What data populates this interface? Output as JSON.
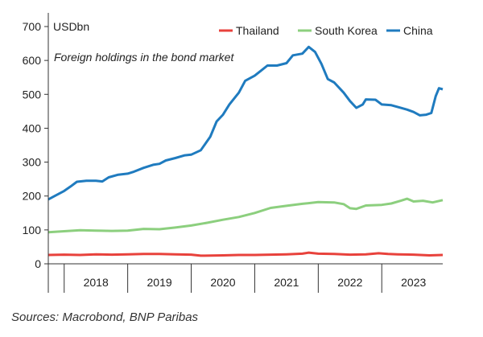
{
  "chart_data": {
    "type": "line",
    "unit_label": "USDbn",
    "subtitle": "Foreign holdings in the bond market",
    "x_range": [
      2017.75,
      2023.96
    ],
    "ylim": [
      0,
      700
    ],
    "yticks": [
      0,
      100,
      200,
      300,
      400,
      500,
      600,
      700
    ],
    "year_labels": [
      "2018",
      "2019",
      "2020",
      "2021",
      "2022",
      "2023"
    ],
    "legend_position": "top-right",
    "series": [
      {
        "name": "Thailand",
        "color": "#e8423c",
        "points": [
          [
            2017.75,
            26
          ],
          [
            2018.0,
            27
          ],
          [
            2018.25,
            26
          ],
          [
            2018.5,
            28
          ],
          [
            2018.75,
            27
          ],
          [
            2019.0,
            28
          ],
          [
            2019.25,
            29
          ],
          [
            2019.5,
            29
          ],
          [
            2019.75,
            28
          ],
          [
            2020.0,
            27
          ],
          [
            2020.15,
            24
          ],
          [
            2020.5,
            25
          ],
          [
            2020.75,
            26
          ],
          [
            2021.0,
            26
          ],
          [
            2021.25,
            27
          ],
          [
            2021.5,
            28
          ],
          [
            2021.75,
            30
          ],
          [
            2021.85,
            33
          ],
          [
            2022.0,
            30
          ],
          [
            2022.25,
            29
          ],
          [
            2022.5,
            27
          ],
          [
            2022.75,
            28
          ],
          [
            2022.95,
            31
          ],
          [
            2023.1,
            29
          ],
          [
            2023.25,
            28
          ],
          [
            2023.5,
            27
          ],
          [
            2023.75,
            25
          ],
          [
            2023.96,
            26
          ]
        ]
      },
      {
        "name": "South Korea",
        "color": "#8ccf7e",
        "points": [
          [
            2017.75,
            93
          ],
          [
            2018.0,
            96
          ],
          [
            2018.25,
            99
          ],
          [
            2018.5,
            98
          ],
          [
            2018.75,
            97
          ],
          [
            2019.0,
            98
          ],
          [
            2019.25,
            103
          ],
          [
            2019.5,
            102
          ],
          [
            2019.75,
            107
          ],
          [
            2020.0,
            113
          ],
          [
            2020.25,
            121
          ],
          [
            2020.5,
            130
          ],
          [
            2020.75,
            138
          ],
          [
            2021.0,
            150
          ],
          [
            2021.25,
            165
          ],
          [
            2021.5,
            171
          ],
          [
            2021.75,
            177
          ],
          [
            2022.0,
            182
          ],
          [
            2022.25,
            181
          ],
          [
            2022.4,
            176
          ],
          [
            2022.5,
            164
          ],
          [
            2022.6,
            162
          ],
          [
            2022.75,
            172
          ],
          [
            2023.0,
            174
          ],
          [
            2023.15,
            178
          ],
          [
            2023.3,
            186
          ],
          [
            2023.4,
            192
          ],
          [
            2023.5,
            184
          ],
          [
            2023.65,
            186
          ],
          [
            2023.8,
            181
          ],
          [
            2023.96,
            188
          ]
        ]
      },
      {
        "name": "China",
        "color": "#1f7bbf",
        "points": [
          [
            2017.75,
            190
          ],
          [
            2017.85,
            200
          ],
          [
            2018.0,
            215
          ],
          [
            2018.1,
            228
          ],
          [
            2018.2,
            242
          ],
          [
            2018.35,
            245
          ],
          [
            2018.5,
            245
          ],
          [
            2018.6,
            243
          ],
          [
            2018.7,
            255
          ],
          [
            2018.85,
            263
          ],
          [
            2019.0,
            266
          ],
          [
            2019.1,
            272
          ],
          [
            2019.25,
            283
          ],
          [
            2019.4,
            292
          ],
          [
            2019.5,
            295
          ],
          [
            2019.6,
            305
          ],
          [
            2019.75,
            312
          ],
          [
            2019.9,
            320
          ],
          [
            2020.0,
            322
          ],
          [
            2020.15,
            335
          ],
          [
            2020.3,
            375
          ],
          [
            2020.4,
            420
          ],
          [
            2020.5,
            440
          ],
          [
            2020.6,
            470
          ],
          [
            2020.75,
            505
          ],
          [
            2020.85,
            540
          ],
          [
            2021.0,
            555
          ],
          [
            2021.1,
            570
          ],
          [
            2021.2,
            585
          ],
          [
            2021.35,
            585
          ],
          [
            2021.5,
            592
          ],
          [
            2021.6,
            615
          ],
          [
            2021.75,
            620
          ],
          [
            2021.85,
            640
          ],
          [
            2021.95,
            625
          ],
          [
            2022.05,
            590
          ],
          [
            2022.15,
            545
          ],
          [
            2022.25,
            535
          ],
          [
            2022.4,
            505
          ],
          [
            2022.5,
            480
          ],
          [
            2022.6,
            460
          ],
          [
            2022.7,
            470
          ],
          [
            2022.75,
            485
          ],
          [
            2022.9,
            484
          ],
          [
            2023.0,
            470
          ],
          [
            2023.15,
            468
          ],
          [
            2023.3,
            460
          ],
          [
            2023.4,
            455
          ],
          [
            2023.5,
            448
          ],
          [
            2023.6,
            438
          ],
          [
            2023.7,
            440
          ],
          [
            2023.78,
            445
          ],
          [
            2023.85,
            495
          ],
          [
            2023.9,
            518
          ],
          [
            2023.96,
            515
          ]
        ]
      }
    ]
  },
  "source": "Sources: Macrobond, BNP Paribas"
}
